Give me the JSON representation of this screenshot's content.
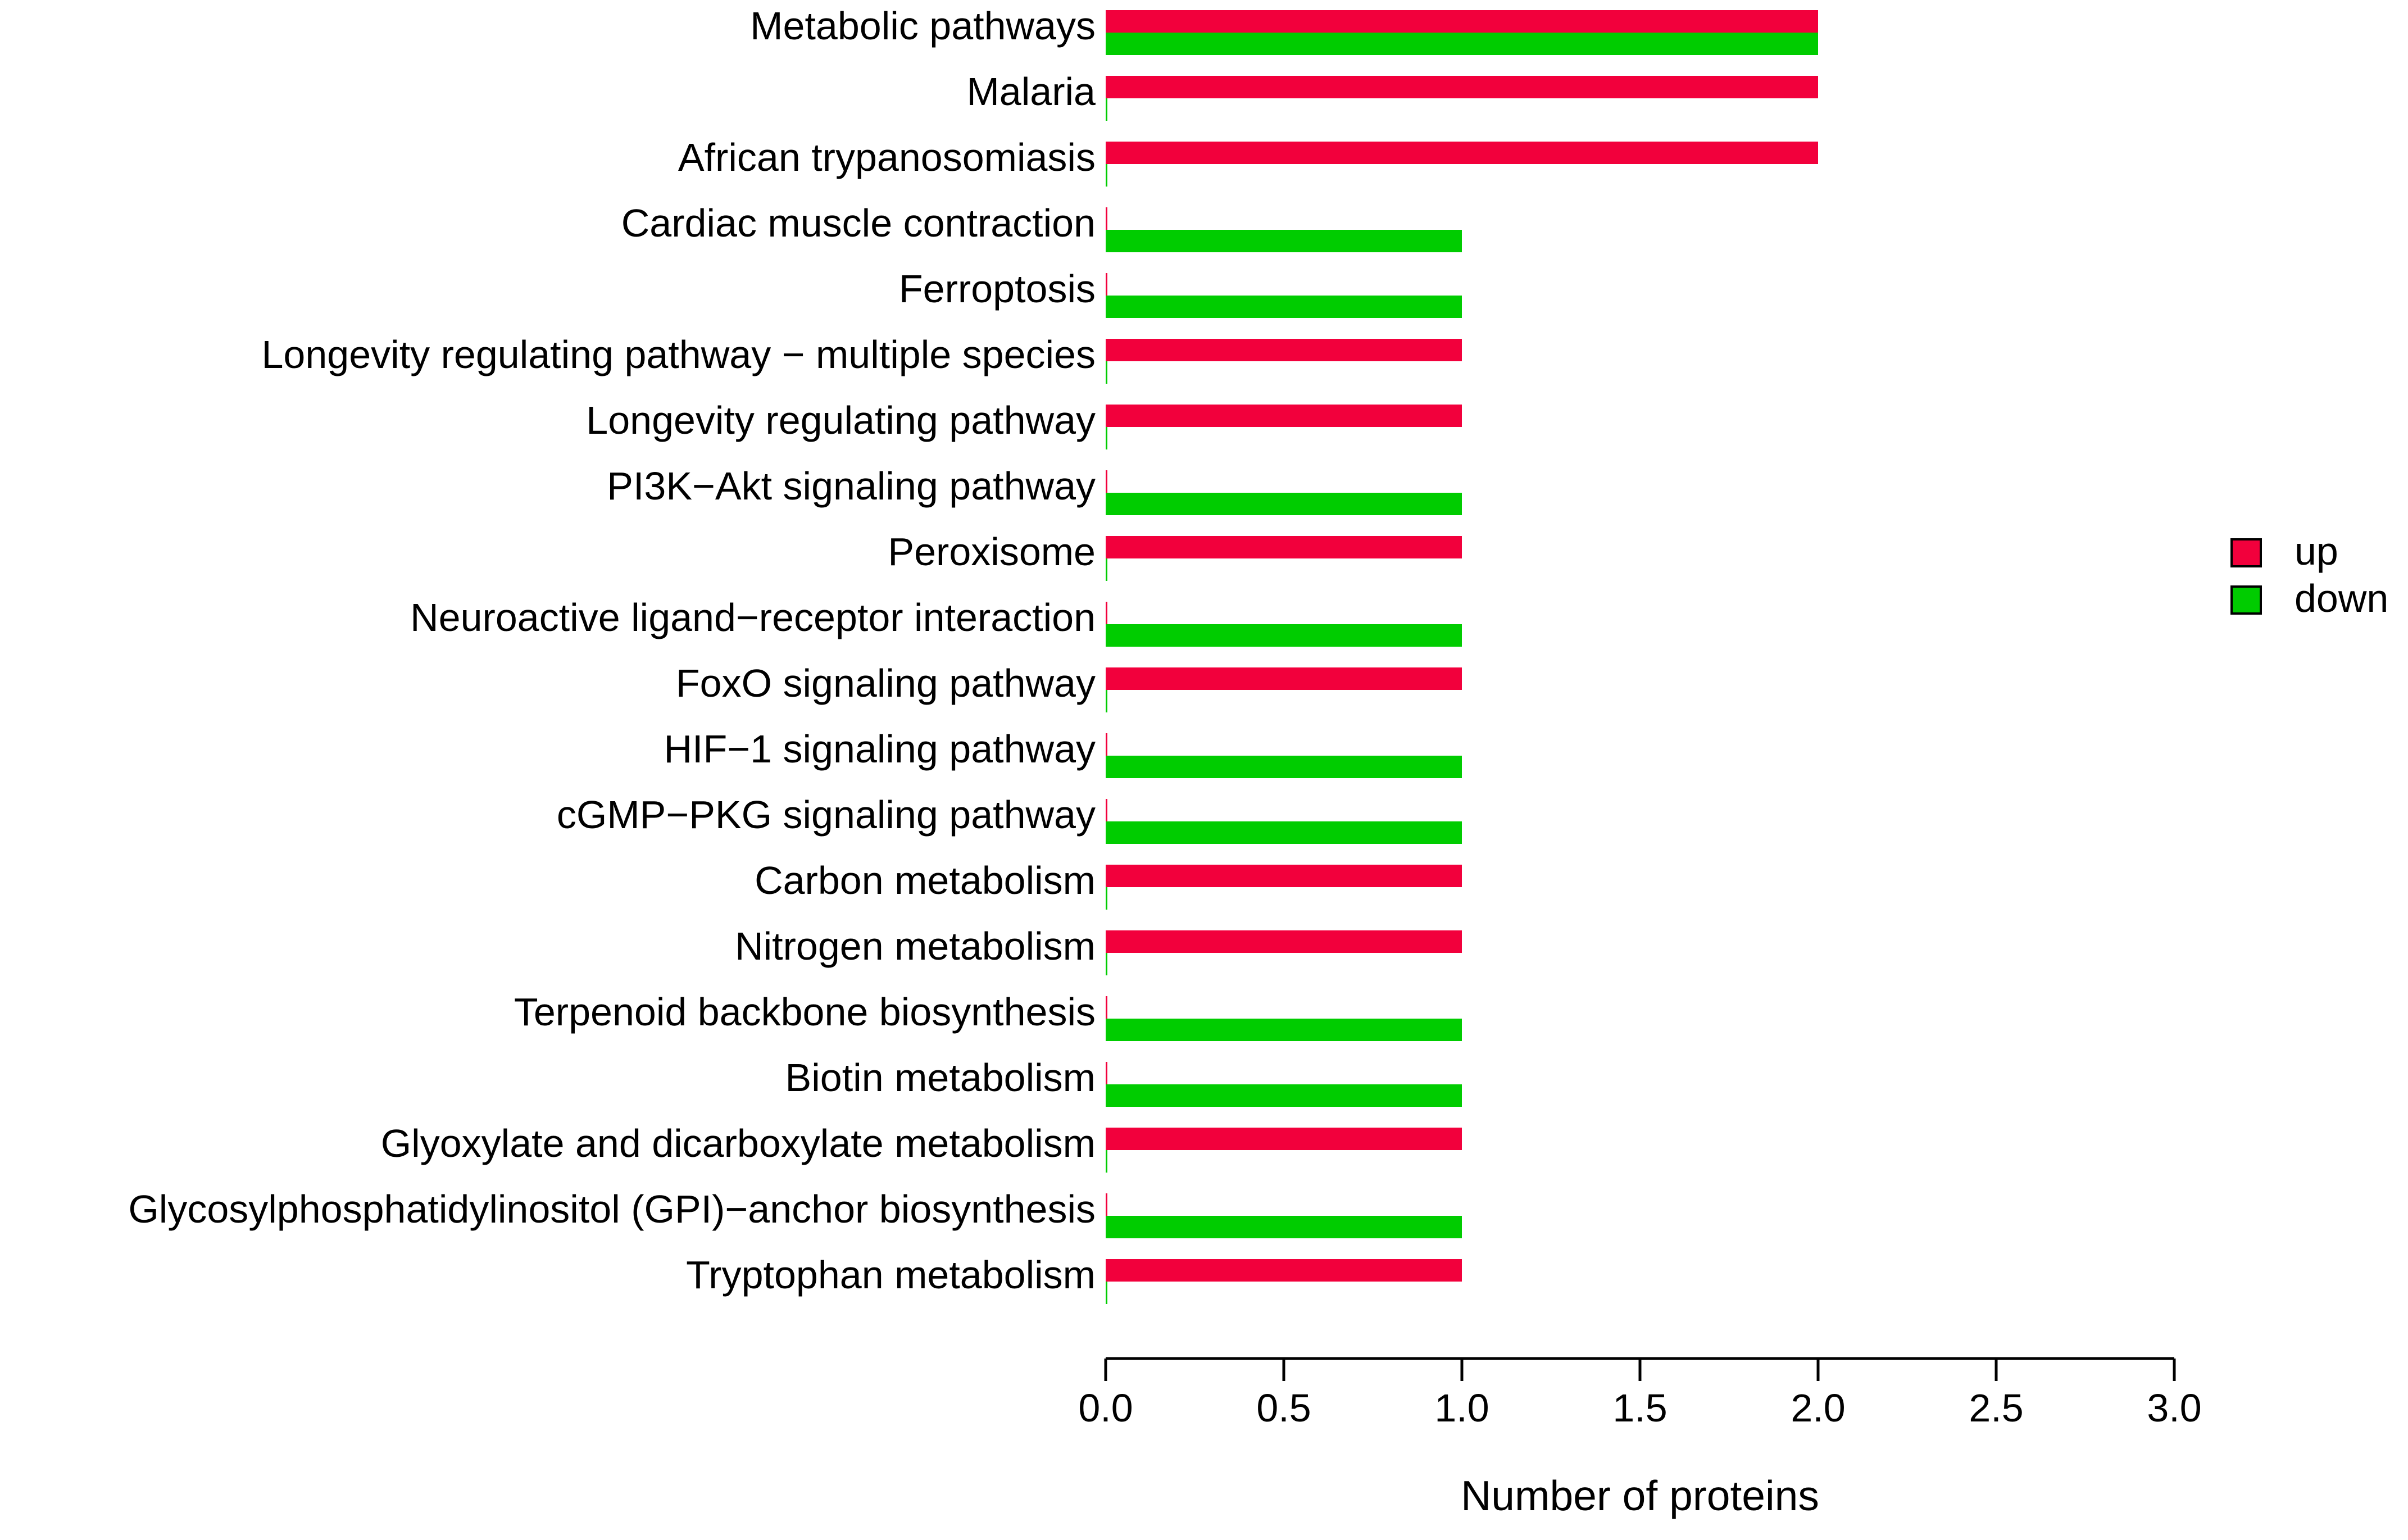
{
  "chart_data": {
    "type": "bar",
    "orientation": "horizontal",
    "title": "",
    "xlabel": "Number of proteins",
    "ylabel": "",
    "xlim": [
      0,
      3
    ],
    "xticks": [
      "0.0",
      "0.5",
      "1.0",
      "1.5",
      "2.0",
      "2.5",
      "3.0"
    ],
    "grid": false,
    "legend_position": "right",
    "categories": [
      "Metabolic pathways",
      "Malaria",
      "African trypanosomiasis",
      "Cardiac muscle contraction",
      "Ferroptosis",
      "Longevity regulating pathway − multiple species",
      "Longevity regulating pathway",
      "PI3K−Akt signaling pathway",
      "Peroxisome",
      "Neuroactive ligand−receptor interaction",
      "FoxO signaling pathway",
      "HIF−1 signaling pathway",
      "cGMP−PKG signaling pathway",
      "Carbon metabolism",
      "Nitrogen metabolism",
      "Terpenoid backbone biosynthesis",
      "Biotin metabolism",
      "Glyoxylate and dicarboxylate metabolism",
      "Glycosylphosphatidylinositol (GPI)−anchor biosynthesis",
      "Tryptophan metabolism"
    ],
    "series": [
      {
        "name": "up",
        "color": "#F2003C",
        "values": [
          2,
          2,
          2,
          0,
          0,
          1,
          1,
          0,
          1,
          0,
          1,
          0,
          0,
          1,
          1,
          0,
          0,
          1,
          0,
          1
        ]
      },
      {
        "name": "down",
        "color": "#00CC00",
        "values": [
          2,
          0,
          0,
          1,
          1,
          0,
          0,
          1,
          0,
          1,
          0,
          1,
          1,
          0,
          0,
          1,
          1,
          0,
          1,
          0
        ]
      }
    ]
  }
}
